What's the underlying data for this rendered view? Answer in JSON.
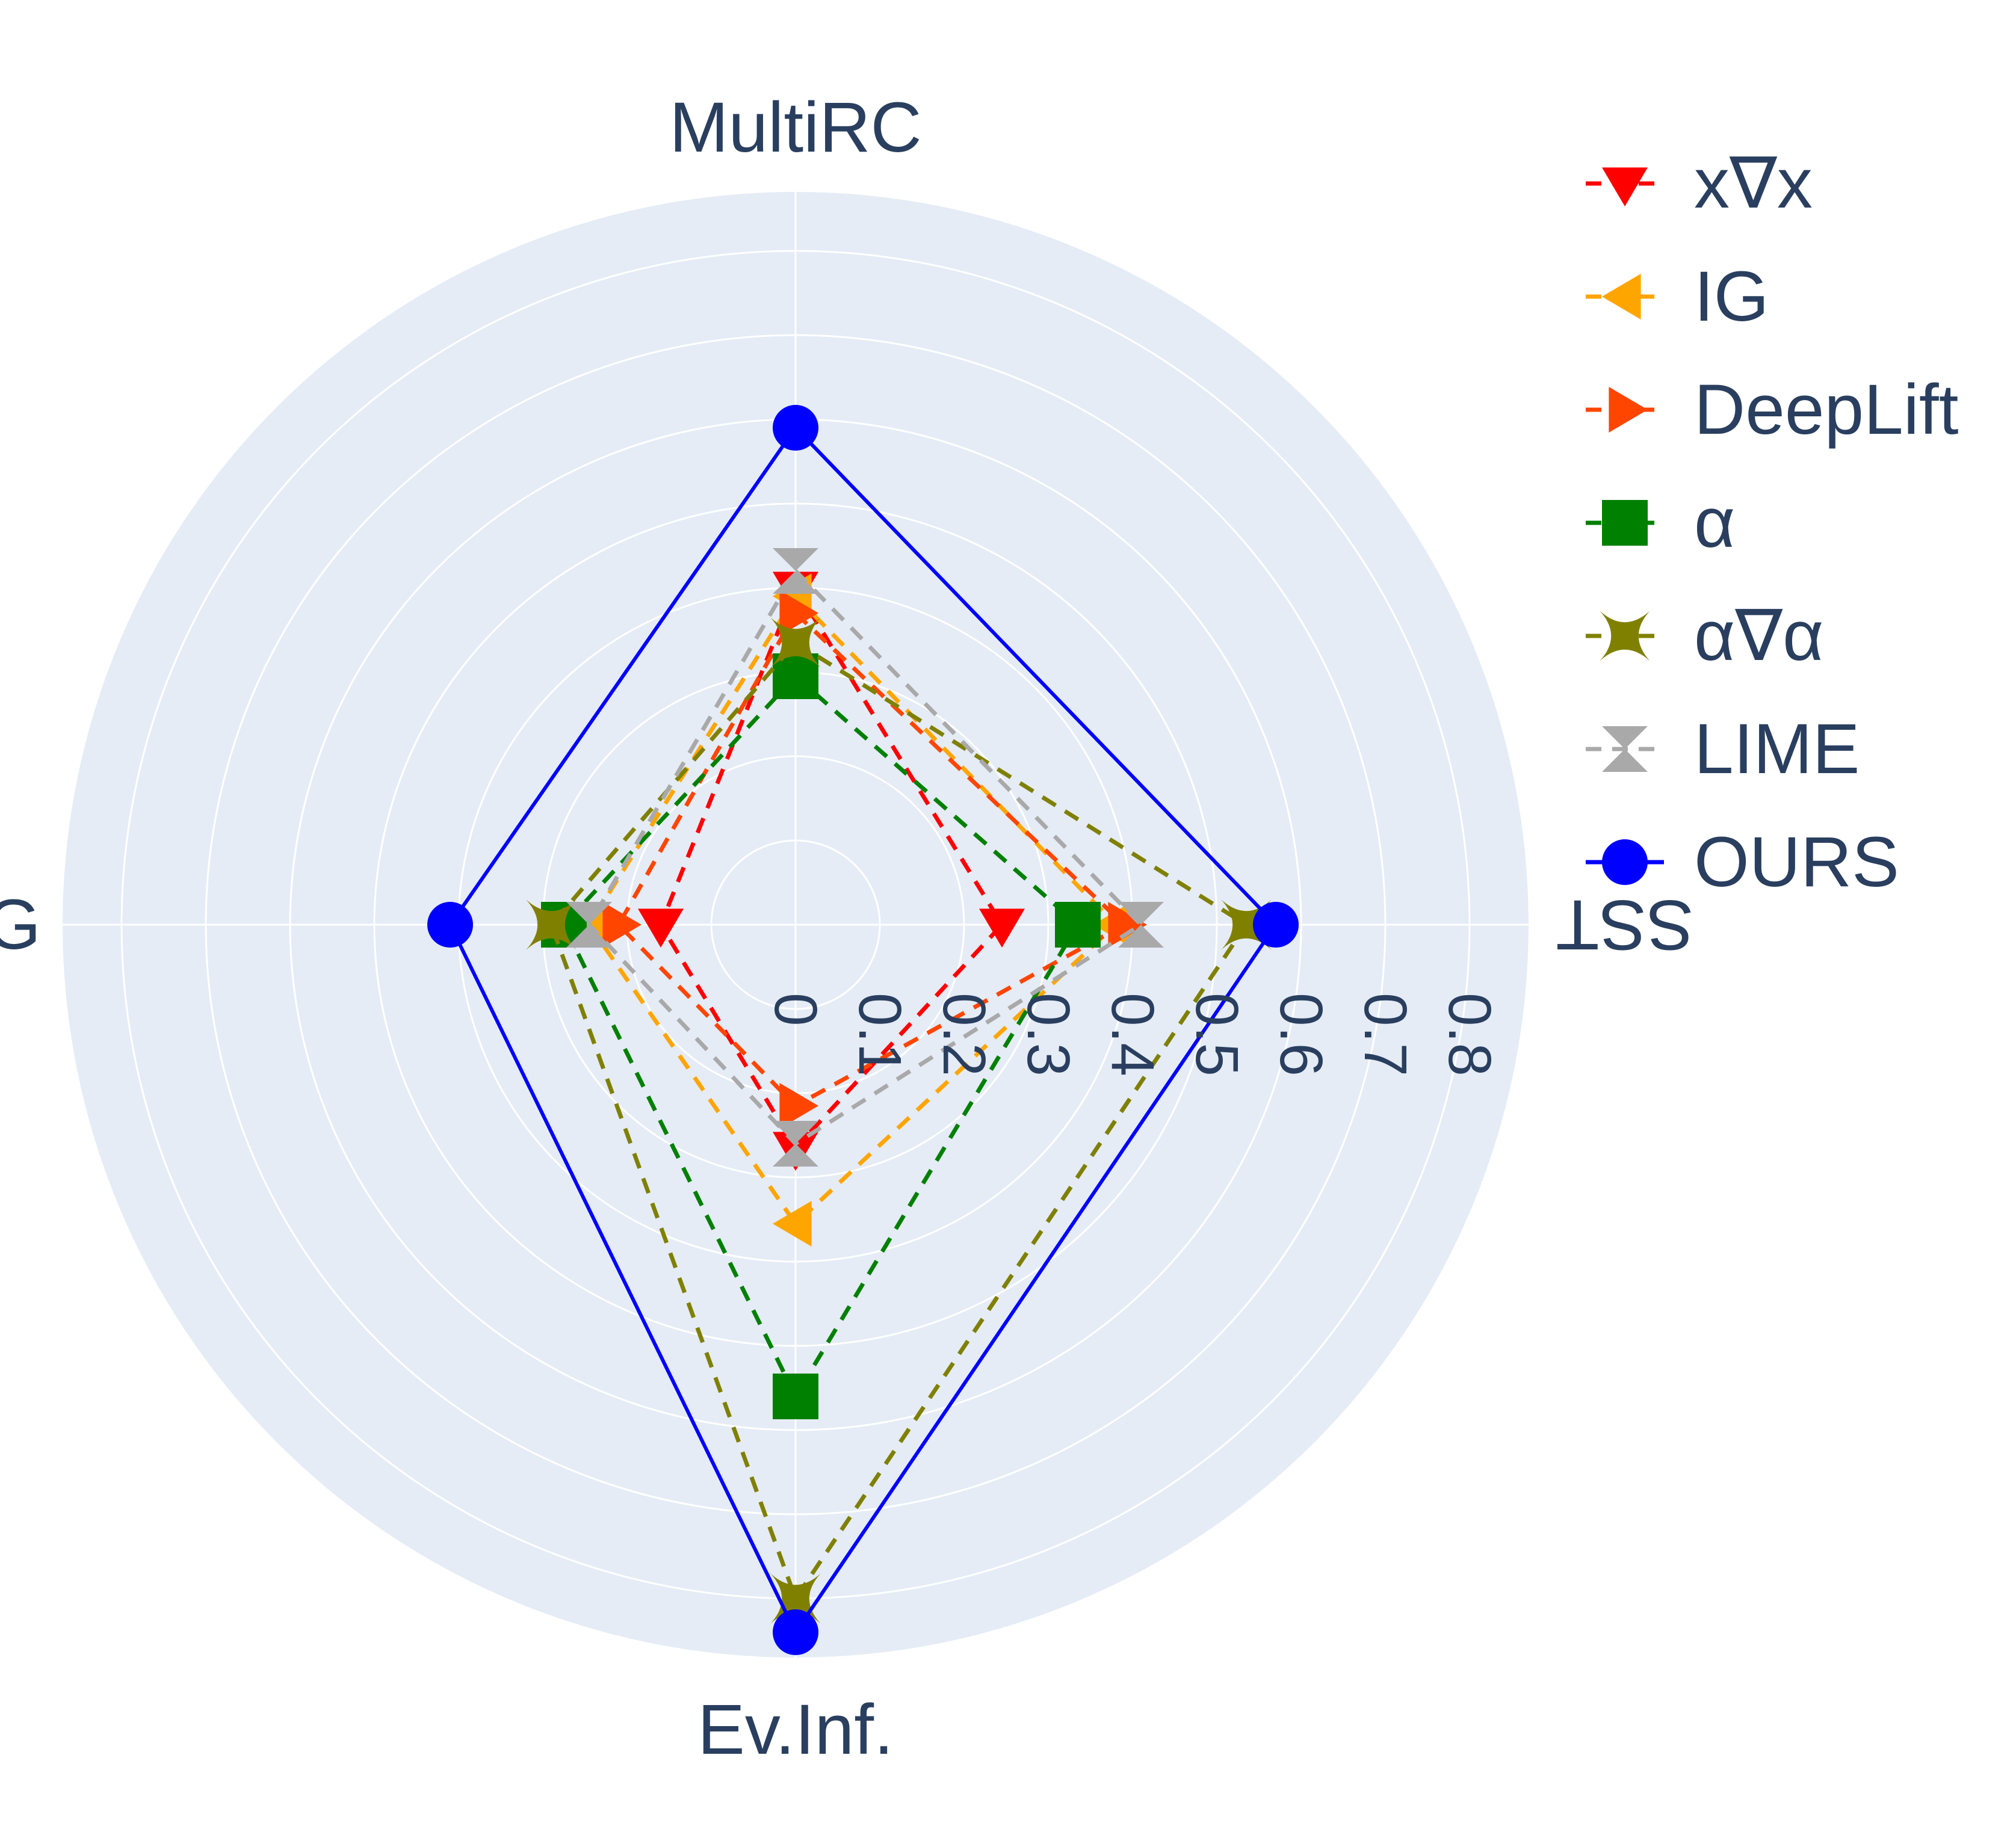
{
  "colors": {
    "polar_bg": "#e5ecf6",
    "grid": "#ffffff",
    "text": "#2a3f5f"
  },
  "chart_data": {
    "type": "radar",
    "axes": [
      "MultiRC",
      "SST",
      "Ev.Inf.",
      "AG"
    ],
    "axes_visible_text": [
      "MultiRC",
      "SST",
      "Ev.Inf.",
      "G"
    ],
    "radial_range": [
      0,
      0.87
    ],
    "radial_ticks": [
      "0",
      "0.1",
      "0.2",
      "0.3",
      "0.4",
      "0.5",
      "0.6",
      "0.7",
      "0.8"
    ],
    "grid": true,
    "legend_position": "right",
    "series": [
      {
        "name": "x∇x",
        "color": "#ff0000",
        "marker": "triangle-down",
        "dash": "dash",
        "values": [
          0.4,
          0.245,
          0.265,
          0.16
        ]
      },
      {
        "name": "IG",
        "color": "#ffa500",
        "marker": "triangle-left",
        "dash": "dash",
        "values": [
          0.39,
          0.38,
          0.355,
          0.245
        ]
      },
      {
        "name": "DeepLift",
        "color": "#ff4500",
        "marker": "triangle-right",
        "dash": "dash",
        "values": [
          0.37,
          0.39,
          0.215,
          0.21
        ]
      },
      {
        "name": "α",
        "color": "#008000",
        "marker": "square",
        "dash": "dash",
        "values": [
          0.295,
          0.335,
          0.56,
          0.275
        ]
      },
      {
        "name": "α∇α",
        "color": "#808000",
        "marker": "star",
        "dash": "dash",
        "values": [
          0.335,
          0.535,
          0.8,
          0.29
        ]
      },
      {
        "name": "LIME",
        "color": "#a9a9a9",
        "marker": "hourglass",
        "dash": "dash",
        "values": [
          0.42,
          0.41,
          0.26,
          0.245
        ]
      },
      {
        "name": "OURS",
        "color": "#0000ff",
        "marker": "circle",
        "dash": "solid",
        "values": [
          0.59,
          0.57,
          0.84,
          0.41
        ]
      }
    ]
  }
}
